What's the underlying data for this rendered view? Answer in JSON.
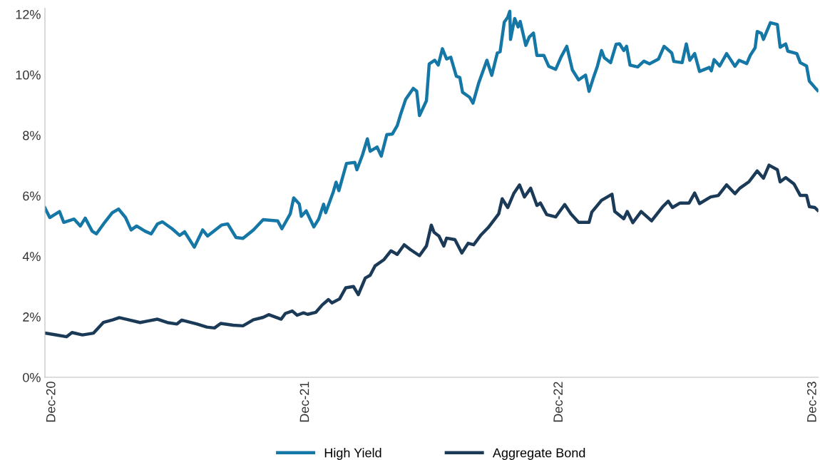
{
  "chart_data": {
    "type": "line",
    "xlim": [
      "2020-12-21",
      "2024-01-08"
    ],
    "xticks": [
      {
        "value": "2020-12-31",
        "label": "Dec-20"
      },
      {
        "value": "2021-12-31",
        "label": "Dec-21"
      },
      {
        "value": "2022-12-31",
        "label": "Dec-22"
      },
      {
        "value": "2023-12-31",
        "label": "Dec-23"
      }
    ],
    "ylim": [
      0,
      12.2
    ],
    "yticks": [
      {
        "value": 0,
        "label": "0%"
      },
      {
        "value": 2,
        "label": "2%"
      },
      {
        "value": 4,
        "label": "4%"
      },
      {
        "value": 6,
        "label": "6%"
      },
      {
        "value": 8,
        "label": "8%"
      },
      {
        "value": 10,
        "label": "10%"
      },
      {
        "value": 12,
        "label": "12%"
      }
    ],
    "grid": false,
    "legend": "bottom",
    "marker": "none",
    "line_style": "solid",
    "series": [
      {
        "name": "High Yield",
        "color": "#1477a6",
        "x": [
          "2020-12-21",
          "2020-12-28",
          "2021-01-11",
          "2021-01-17",
          "2021-02-01",
          "2021-02-10",
          "2021-02-17",
          "2021-02-27",
          "2021-03-05",
          "2021-03-17",
          "2021-03-28",
          "2021-04-06",
          "2021-04-16",
          "2021-04-24",
          "2021-05-02",
          "2021-05-14",
          "2021-05-23",
          "2021-06-01",
          "2021-06-08",
          "2021-06-22",
          "2021-07-03",
          "2021-07-10",
          "2021-07-24",
          "2021-08-05",
          "2021-08-12",
          "2021-09-01",
          "2021-09-10",
          "2021-09-22",
          "2021-10-02",
          "2021-10-17",
          "2021-10-31",
          "2021-11-21",
          "2021-11-27",
          "2021-12-09",
          "2021-12-14",
          "2021-12-22",
          "2021-12-25",
          "2022-01-01",
          "2022-01-12",
          "2022-01-19",
          "2022-01-26",
          "2022-01-29",
          "2022-02-09",
          "2022-02-13",
          "2022-02-17",
          "2022-02-23",
          "2022-02-28",
          "2022-03-12",
          "2022-03-15",
          "2022-03-23",
          "2022-03-30",
          "2022-04-03",
          "2022-04-13",
          "2022-04-19",
          "2022-04-27",
          "2022-05-05",
          "2022-05-12",
          "2022-05-17",
          "2022-05-24",
          "2022-06-04",
          "2022-06-09",
          "2022-06-13",
          "2022-06-23",
          "2022-06-27",
          "2022-07-05",
          "2022-07-10",
          "2022-07-16",
          "2022-07-22",
          "2022-07-28",
          "2022-08-05",
          "2022-08-10",
          "2022-08-14",
          "2022-08-24",
          "2022-08-29",
          "2022-09-06",
          "2022-09-18",
          "2022-09-25",
          "2022-10-03",
          "2022-10-07",
          "2022-10-13",
          "2022-10-18",
          "2022-10-21",
          "2022-10-22",
          "2022-10-28",
          "2022-11-02",
          "2022-11-05",
          "2022-11-13",
          "2022-11-18",
          "2022-11-24",
          "2022-11-29",
          "2022-12-09",
          "2022-12-16",
          "2022-12-26",
          "2023-01-03",
          "2023-01-11",
          "2023-01-19",
          "2023-01-28",
          "2023-02-07",
          "2023-02-12",
          "2023-02-19",
          "2023-02-24",
          "2023-03-02",
          "2023-03-06",
          "2023-03-15",
          "2023-03-23",
          "2023-03-28",
          "2023-04-03",
          "2023-04-07",
          "2023-04-12",
          "2023-04-23",
          "2023-05-02",
          "2023-05-10",
          "2023-05-23",
          "2023-05-31",
          "2023-06-11",
          "2023-06-14",
          "2023-06-26",
          "2023-07-02",
          "2023-07-07",
          "2023-07-14",
          "2023-07-21",
          "2023-08-04",
          "2023-08-07",
          "2023-08-11",
          "2023-08-19",
          "2023-08-29",
          "2023-09-10",
          "2023-09-16",
          "2023-09-27",
          "2023-10-02",
          "2023-10-09",
          "2023-10-12",
          "2023-10-18",
          "2023-10-21",
          "2023-10-31",
          "2023-11-10",
          "2023-11-14",
          "2023-11-22",
          "2023-11-25",
          "2023-12-08",
          "2023-12-13",
          "2023-12-22",
          "2023-12-26",
          "2024-01-03",
          "2024-01-07"
        ],
        "values": [
          5.6,
          5.28,
          5.48,
          5.12,
          5.23,
          5.0,
          5.26,
          4.83,
          4.74,
          5.12,
          5.44,
          5.56,
          5.28,
          4.87,
          5.0,
          4.83,
          4.74,
          5.07,
          5.14,
          4.91,
          4.69,
          4.81,
          4.3,
          4.87,
          4.67,
          5.03,
          5.07,
          4.62,
          4.59,
          4.87,
          5.21,
          5.17,
          4.91,
          5.4,
          5.93,
          5.73,
          5.32,
          5.5,
          4.97,
          5.23,
          5.72,
          5.44,
          6.13,
          6.45,
          6.17,
          6.66,
          7.07,
          7.1,
          6.86,
          7.35,
          7.88,
          7.47,
          7.61,
          7.31,
          8.02,
          8.04,
          8.32,
          8.7,
          9.18,
          9.55,
          9.46,
          8.65,
          9.14,
          10.36,
          10.48,
          10.32,
          10.86,
          10.52,
          10.58,
          9.95,
          9.91,
          9.42,
          9.26,
          9.06,
          9.71,
          10.48,
          9.98,
          10.72,
          10.76,
          11.74,
          11.9,
          12.1,
          11.17,
          11.86,
          11.58,
          11.76,
          10.97,
          11.25,
          11.38,
          10.64,
          10.64,
          10.28,
          10.18,
          10.6,
          10.94,
          10.16,
          9.83,
          9.99,
          9.45,
          9.95,
          10.28,
          10.8,
          10.56,
          10.4,
          11.01,
          11.02,
          10.8,
          10.94,
          10.32,
          10.26,
          10.45,
          10.36,
          10.52,
          10.94,
          10.72,
          10.44,
          10.4,
          11.02,
          10.48,
          10.7,
          10.11,
          10.24,
          10.13,
          10.5,
          10.29,
          10.7,
          10.28,
          10.48,
          10.37,
          10.64,
          10.89,
          11.43,
          11.37,
          11.17,
          11.72,
          11.66,
          10.91,
          11.02,
          10.78,
          10.7,
          10.4,
          10.29,
          9.79,
          9.58,
          9.48
        ]
      },
      {
        "name": "Aggregate Bond",
        "color": "#1b3a57",
        "x": [
          "2020-12-21",
          "2021-01-04",
          "2021-01-21",
          "2021-01-29",
          "2021-02-13",
          "2021-03-01",
          "2021-03-15",
          "2021-03-29",
          "2021-04-07",
          "2021-04-17",
          "2021-05-07",
          "2021-05-18",
          "2021-06-01",
          "2021-06-15",
          "2021-06-29",
          "2021-07-06",
          "2021-07-28",
          "2021-08-11",
          "2021-08-22",
          "2021-08-31",
          "2021-09-18",
          "2021-10-02",
          "2021-10-17",
          "2021-10-31",
          "2021-11-08",
          "2021-11-26",
          "2021-12-02",
          "2021-12-12",
          "2021-12-19",
          "2021-12-28",
          "2022-01-03",
          "2022-01-15",
          "2022-01-24",
          "2022-02-02",
          "2022-02-07",
          "2022-02-18",
          "2022-02-27",
          "2022-03-10",
          "2022-03-17",
          "2022-03-27",
          "2022-04-03",
          "2022-04-10",
          "2022-04-23",
          "2022-05-03",
          "2022-05-12",
          "2022-05-22",
          "2022-05-31",
          "2022-06-13",
          "2022-06-23",
          "2022-06-30",
          "2022-07-04",
          "2022-07-11",
          "2022-07-18",
          "2022-07-22",
          "2022-08-03",
          "2022-08-13",
          "2022-08-22",
          "2022-08-30",
          "2022-09-09",
          "2022-09-20",
          "2022-10-05",
          "2022-10-10",
          "2022-10-18",
          "2022-10-27",
          "2022-11-04",
          "2022-11-11",
          "2022-11-20",
          "2022-11-29",
          "2022-12-04",
          "2022-12-13",
          "2022-12-26",
          "2023-01-08",
          "2023-01-17",
          "2023-01-28",
          "2023-02-12",
          "2023-02-16",
          "2023-03-02",
          "2023-03-17",
          "2023-03-21",
          "2023-04-03",
          "2023-04-08",
          "2023-04-16",
          "2023-04-28",
          "2023-05-13",
          "2023-05-29",
          "2023-06-06",
          "2023-06-12",
          "2023-06-23",
          "2023-07-06",
          "2023-07-14",
          "2023-07-21",
          "2023-08-06",
          "2023-08-17",
          "2023-08-29",
          "2023-09-10",
          "2023-09-17",
          "2023-09-30",
          "2023-10-12",
          "2023-10-21",
          "2023-10-29",
          "2023-11-10",
          "2023-11-14",
          "2023-11-22",
          "2023-12-04",
          "2023-12-13",
          "2023-12-22",
          "2023-12-26",
          "2024-01-03",
          "2024-01-07"
        ],
        "values": [
          1.46,
          1.41,
          1.34,
          1.48,
          1.4,
          1.46,
          1.81,
          1.9,
          1.97,
          1.92,
          1.81,
          1.86,
          1.92,
          1.81,
          1.76,
          1.89,
          1.76,
          1.66,
          1.63,
          1.78,
          1.72,
          1.7,
          1.9,
          1.98,
          2.07,
          1.92,
          2.11,
          2.19,
          2.05,
          2.13,
          2.08,
          2.15,
          2.39,
          2.57,
          2.46,
          2.59,
          2.96,
          3.0,
          2.73,
          3.28,
          3.37,
          3.68,
          3.89,
          4.18,
          4.06,
          4.38,
          4.22,
          4.02,
          4.34,
          5.03,
          4.79,
          4.67,
          4.34,
          4.6,
          4.55,
          4.11,
          4.43,
          4.38,
          4.69,
          4.95,
          5.4,
          5.9,
          5.61,
          6.09,
          6.36,
          5.96,
          6.25,
          5.68,
          5.76,
          5.38,
          5.3,
          5.71,
          5.4,
          5.12,
          5.12,
          5.46,
          5.85,
          6.05,
          5.48,
          5.24,
          5.48,
          5.11,
          5.48,
          5.17,
          5.64,
          5.82,
          5.61,
          5.76,
          5.76,
          6.09,
          5.74,
          5.96,
          6.01,
          6.36,
          6.07,
          6.25,
          6.46,
          6.82,
          6.58,
          7.01,
          6.86,
          6.46,
          6.6,
          6.39,
          6.01,
          6.01,
          5.64,
          5.61,
          5.52
        ]
      }
    ]
  }
}
